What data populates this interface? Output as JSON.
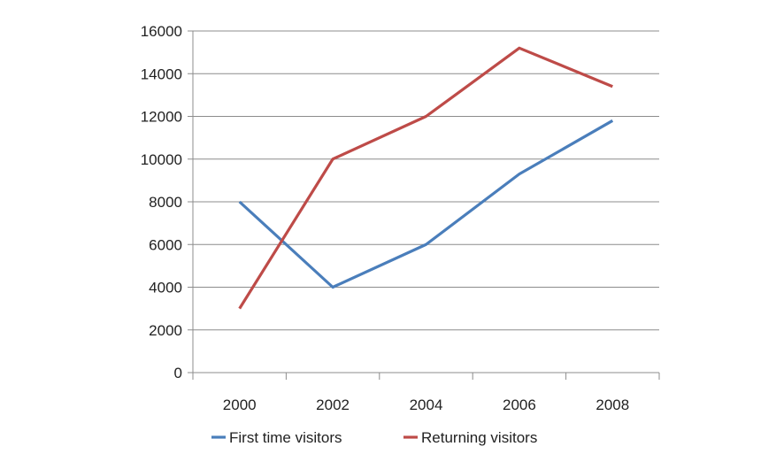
{
  "chart_data": {
    "type": "line",
    "title": "",
    "xlabel": "",
    "ylabel": "",
    "categories": [
      "2000",
      "2002",
      "2004",
      "2006",
      "2008"
    ],
    "ylim": [
      0,
      16000
    ],
    "yticks": [
      "0",
      "2000",
      "4000",
      "6000",
      "8000",
      "10000",
      "12000",
      "14000",
      "16000"
    ],
    "grid": "horizontal",
    "legend_position": "bottom",
    "series": [
      {
        "name": "First time visitors",
        "values": [
          8000,
          4000,
          6000,
          9300,
          11800
        ],
        "color": "#4a7ebb"
      },
      {
        "name": "Returning visitors",
        "values": [
          3000,
          10000,
          12000,
          15200,
          13400
        ],
        "color": "#be4b48"
      }
    ]
  }
}
